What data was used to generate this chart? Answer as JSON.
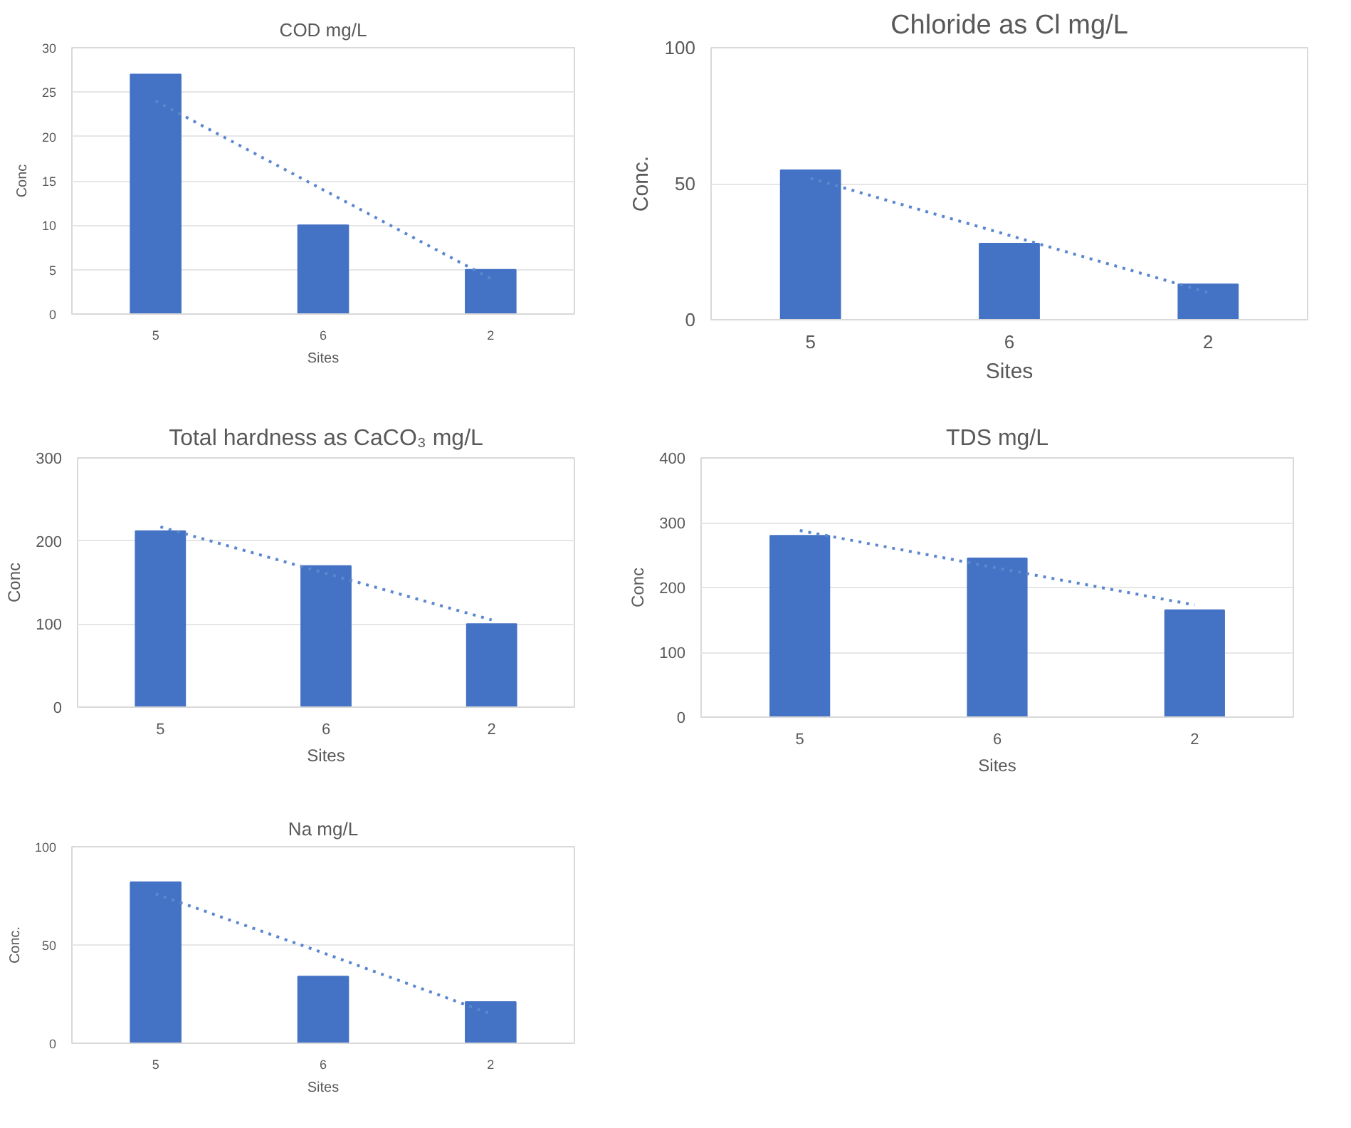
{
  "chart_data": [
    {
      "type": "bar",
      "title": "COD mg/L",
      "xlabel": "Sites",
      "ylabel": "Conc",
      "categories": [
        "5",
        "6",
        "2"
      ],
      "ylim": [
        0,
        30
      ],
      "yticks": [
        0,
        5,
        10,
        15,
        20,
        25,
        30
      ],
      "grid": "y",
      "series": [
        {
          "color": "#4472c4",
          "values": [
            27,
            10,
            5
          ]
        },
        {
          "type": "line",
          "color": "#5b87cf",
          "line_style": "dotted",
          "values": [
            24,
            14,
            4
          ]
        }
      ]
    },
    {
      "type": "bar",
      "title": "Chloride as Cl mg/L",
      "xlabel": "Sites",
      "ylabel": "Conc.",
      "categories": [
        "5",
        "6",
        "2"
      ],
      "ylim": [
        0,
        100
      ],
      "yticks": [
        0,
        50,
        100
      ],
      "grid": "y",
      "series": [
        {
          "color": "#4472c4",
          "values": [
            55,
            28,
            13
          ]
        },
        {
          "type": "line",
          "color": "#5b87cf",
          "line_style": "dotted",
          "values": [
            52,
            31,
            10
          ]
        }
      ]
    },
    {
      "type": "bar",
      "title": "Total hardness as CaCO₃ mg/L",
      "xlabel": "Sites",
      "ylabel": "Conc",
      "categories": [
        "5",
        "6",
        "2"
      ],
      "ylim": [
        0,
        300
      ],
      "yticks": [
        0,
        100,
        200,
        300
      ],
      "grid": "y",
      "series": [
        {
          "color": "#4472c4",
          "values": [
            212,
            170,
            100
          ]
        },
        {
          "type": "line",
          "color": "#5b87cf",
          "line_style": "dotted",
          "values": [
            217,
            161,
            105
          ]
        }
      ]
    },
    {
      "type": "bar",
      "title": "TDS mg/L",
      "xlabel": "Sites",
      "ylabel": "Conc",
      "categories": [
        "5",
        "6",
        "2"
      ],
      "ylim": [
        0,
        400
      ],
      "yticks": [
        0,
        100,
        200,
        300,
        400
      ],
      "grid": "y",
      "series": [
        {
          "color": "#4472c4",
          "values": [
            280,
            245,
            165
          ]
        },
        {
          "type": "line",
          "color": "#5b87cf",
          "line_style": "dotted",
          "values": [
            288,
            230,
            173
          ]
        }
      ]
    },
    {
      "type": "bar",
      "title": "Na mg/L",
      "xlabel": "Sites",
      "ylabel": "Conc.",
      "categories": [
        "5",
        "6",
        "2"
      ],
      "ylim": [
        0,
        100
      ],
      "yticks": [
        0,
        50,
        100
      ],
      "grid": "y",
      "series": [
        {
          "color": "#4472c4",
          "values": [
            82,
            34,
            21
          ]
        },
        {
          "type": "line",
          "color": "#5b87cf",
          "line_style": "dotted",
          "values": [
            76,
            46,
            15
          ]
        }
      ]
    }
  ]
}
